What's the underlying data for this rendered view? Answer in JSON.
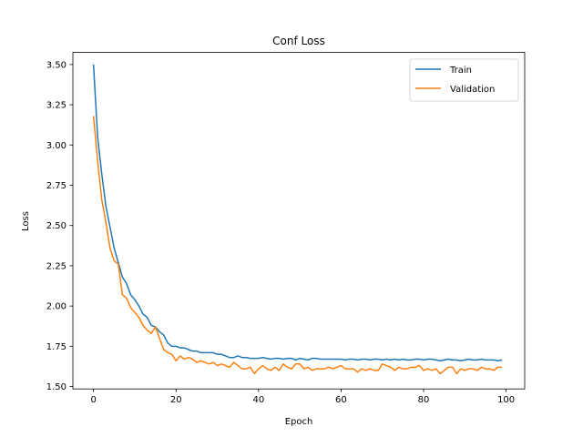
{
  "chart_data": {
    "type": "line",
    "title": "Conf Loss",
    "xlabel": "Epoch",
    "ylabel": "Loss",
    "xlim": [
      -5,
      104.5
    ],
    "ylim": [
      1.485,
      3.575
    ],
    "xticks": [
      0,
      20,
      40,
      60,
      80,
      100
    ],
    "xtick_labels": [
      "0",
      "20",
      "40",
      "60",
      "80",
      "100"
    ],
    "yticks": [
      1.5,
      1.75,
      2.0,
      2.25,
      2.5,
      2.75,
      3.0,
      3.25,
      3.5
    ],
    "ytick_labels": [
      "1.50",
      "1.75",
      "2.00",
      "2.25",
      "2.50",
      "2.75",
      "3.00",
      "3.25",
      "3.50"
    ],
    "grid": false,
    "legend_position": "top-right",
    "x": [
      0,
      1,
      2,
      3,
      4,
      5,
      6,
      7,
      8,
      9,
      10,
      11,
      12,
      13,
      14,
      15,
      16,
      17,
      18,
      19,
      20,
      21,
      22,
      23,
      24,
      25,
      26,
      27,
      28,
      29,
      30,
      31,
      32,
      33,
      34,
      35,
      36,
      37,
      38,
      39,
      40,
      41,
      42,
      43,
      44,
      45,
      46,
      47,
      48,
      49,
      50,
      51,
      52,
      53,
      54,
      55,
      56,
      57,
      58,
      59,
      60,
      61,
      62,
      63,
      64,
      65,
      66,
      67,
      68,
      69,
      70,
      71,
      72,
      73,
      74,
      75,
      76,
      77,
      78,
      79,
      80,
      81,
      82,
      83,
      84,
      85,
      86,
      87,
      88,
      89,
      90,
      91,
      92,
      93,
      94,
      95,
      96,
      97,
      98,
      99
    ],
    "series": [
      {
        "name": "Train",
        "color": "#1f77b4",
        "values": [
          3.5,
          3.05,
          2.82,
          2.62,
          2.49,
          2.36,
          2.27,
          2.18,
          2.14,
          2.07,
          2.04,
          2.0,
          1.95,
          1.93,
          1.88,
          1.87,
          1.84,
          1.82,
          1.77,
          1.75,
          1.75,
          1.74,
          1.74,
          1.73,
          1.72,
          1.72,
          1.71,
          1.71,
          1.71,
          1.71,
          1.7,
          1.7,
          1.69,
          1.68,
          1.68,
          1.69,
          1.68,
          1.68,
          1.675,
          1.675,
          1.675,
          1.68,
          1.675,
          1.67,
          1.675,
          1.675,
          1.67,
          1.675,
          1.675,
          1.665,
          1.675,
          1.67,
          1.665,
          1.675,
          1.675,
          1.67,
          1.67,
          1.67,
          1.67,
          1.67,
          1.67,
          1.665,
          1.67,
          1.67,
          1.665,
          1.67,
          1.67,
          1.665,
          1.67,
          1.67,
          1.665,
          1.67,
          1.665,
          1.67,
          1.665,
          1.67,
          1.665,
          1.665,
          1.67,
          1.67,
          1.665,
          1.67,
          1.67,
          1.665,
          1.66,
          1.665,
          1.67,
          1.665,
          1.665,
          1.66,
          1.665,
          1.67,
          1.665,
          1.665,
          1.67,
          1.665,
          1.665,
          1.665,
          1.66,
          1.665
        ]
      },
      {
        "name": "Validation",
        "color": "#ff7f0e",
        "values": [
          3.18,
          2.9,
          2.66,
          2.52,
          2.36,
          2.28,
          2.26,
          2.07,
          2.05,
          1.99,
          1.96,
          1.93,
          1.88,
          1.85,
          1.83,
          1.87,
          1.8,
          1.73,
          1.71,
          1.7,
          1.66,
          1.69,
          1.67,
          1.68,
          1.67,
          1.65,
          1.66,
          1.65,
          1.64,
          1.65,
          1.63,
          1.64,
          1.63,
          1.62,
          1.65,
          1.63,
          1.61,
          1.61,
          1.62,
          1.58,
          1.61,
          1.63,
          1.61,
          1.6,
          1.62,
          1.6,
          1.64,
          1.62,
          1.61,
          1.64,
          1.64,
          1.61,
          1.62,
          1.6,
          1.61,
          1.61,
          1.61,
          1.62,
          1.61,
          1.62,
          1.63,
          1.61,
          1.61,
          1.61,
          1.59,
          1.61,
          1.6,
          1.61,
          1.6,
          1.6,
          1.64,
          1.63,
          1.62,
          1.6,
          1.62,
          1.61,
          1.61,
          1.62,
          1.62,
          1.63,
          1.6,
          1.61,
          1.6,
          1.61,
          1.58,
          1.6,
          1.62,
          1.62,
          1.58,
          1.61,
          1.6,
          1.61,
          1.61,
          1.6,
          1.62,
          1.61,
          1.61,
          1.6,
          1.62,
          1.62
        ]
      }
    ]
  }
}
